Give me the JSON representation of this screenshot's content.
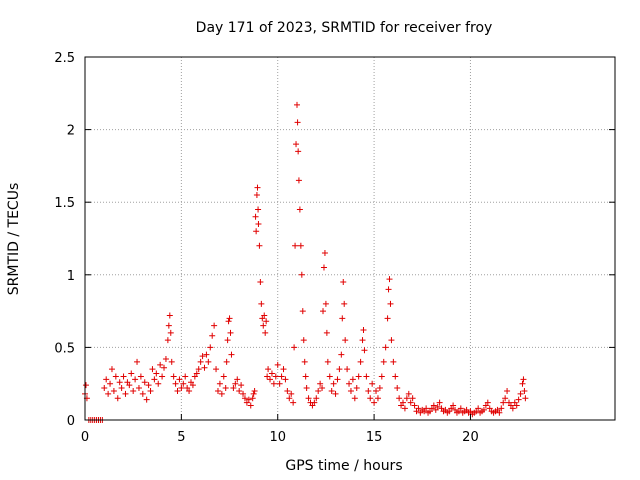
{
  "chart_data": {
    "type": "scatter",
    "title": "Day 171 of 2023, SRMTID for receiver froy",
    "xlabel": "GPS time / hours",
    "ylabel": "SRMTID / TECUs",
    "xlim": [
      0,
      27.5
    ],
    "ylim": [
      0,
      2.5
    ],
    "x_ticks": [
      0,
      5,
      10,
      15,
      20
    ],
    "x_tick_labels": [
      "0",
      "5",
      "10",
      "15",
      "20"
    ],
    "y_ticks": [
      0,
      0.5,
      1,
      1.5,
      2,
      2.5
    ],
    "y_tick_labels": [
      "0",
      "0.5",
      "1",
      "1.5",
      "2",
      "2.5"
    ],
    "grid": true,
    "marker": "+",
    "series": [
      {
        "name": "SRMTID",
        "color": "#e00000",
        "points": [
          [
            0.0,
            0.18
          ],
          [
            0.05,
            0.24
          ],
          [
            0.1,
            0.15
          ],
          [
            0.2,
            0.0
          ],
          [
            0.3,
            0.0
          ],
          [
            0.4,
            0.0
          ],
          [
            0.5,
            0.0
          ],
          [
            0.6,
            0.0
          ],
          [
            0.7,
            0.0
          ],
          [
            0.8,
            0.0
          ],
          [
            0.9,
            0.0
          ],
          [
            1.0,
            0.22
          ],
          [
            1.1,
            0.28
          ],
          [
            1.2,
            0.18
          ],
          [
            1.3,
            0.25
          ],
          [
            1.4,
            0.35
          ],
          [
            1.5,
            0.2
          ],
          [
            1.6,
            0.3
          ],
          [
            1.7,
            0.15
          ],
          [
            1.8,
            0.26
          ],
          [
            1.9,
            0.22
          ],
          [
            2.0,
            0.3
          ],
          [
            2.1,
            0.18
          ],
          [
            2.2,
            0.26
          ],
          [
            2.3,
            0.24
          ],
          [
            2.4,
            0.32
          ],
          [
            2.5,
            0.2
          ],
          [
            2.6,
            0.28
          ],
          [
            2.7,
            0.4
          ],
          [
            2.8,
            0.22
          ],
          [
            2.9,
            0.3
          ],
          [
            3.0,
            0.18
          ],
          [
            3.1,
            0.26
          ],
          [
            3.2,
            0.14
          ],
          [
            3.3,
            0.24
          ],
          [
            3.4,
            0.2
          ],
          [
            3.5,
            0.35
          ],
          [
            3.6,
            0.28
          ],
          [
            3.7,
            0.32
          ],
          [
            3.8,
            0.25
          ],
          [
            3.9,
            0.38
          ],
          [
            4.0,
            0.3
          ],
          [
            4.1,
            0.36
          ],
          [
            4.2,
            0.42
          ],
          [
            4.3,
            0.55
          ],
          [
            4.35,
            0.65
          ],
          [
            4.4,
            0.72
          ],
          [
            4.45,
            0.6
          ],
          [
            4.5,
            0.4
          ],
          [
            4.6,
            0.3
          ],
          [
            4.7,
            0.25
          ],
          [
            4.8,
            0.2
          ],
          [
            4.9,
            0.28
          ],
          [
            5.0,
            0.22
          ],
          [
            5.1,
            0.25
          ],
          [
            5.2,
            0.3
          ],
          [
            5.3,
            0.22
          ],
          [
            5.4,
            0.2
          ],
          [
            5.5,
            0.26
          ],
          [
            5.6,
            0.24
          ],
          [
            5.7,
            0.3
          ],
          [
            5.8,
            0.32
          ],
          [
            5.9,
            0.35
          ],
          [
            6.0,
            0.4
          ],
          [
            6.1,
            0.44
          ],
          [
            6.2,
            0.36
          ],
          [
            6.3,
            0.45
          ],
          [
            6.4,
            0.4
          ],
          [
            6.5,
            0.5
          ],
          [
            6.6,
            0.58
          ],
          [
            6.7,
            0.65
          ],
          [
            6.8,
            0.35
          ],
          [
            6.9,
            0.2
          ],
          [
            7.0,
            0.25
          ],
          [
            7.1,
            0.18
          ],
          [
            7.2,
            0.3
          ],
          [
            7.3,
            0.22
          ],
          [
            7.35,
            0.4
          ],
          [
            7.4,
            0.55
          ],
          [
            7.45,
            0.68
          ],
          [
            7.5,
            0.7
          ],
          [
            7.55,
            0.6
          ],
          [
            7.6,
            0.45
          ],
          [
            7.7,
            0.22
          ],
          [
            7.8,
            0.25
          ],
          [
            7.9,
            0.28
          ],
          [
            8.0,
            0.2
          ],
          [
            8.1,
            0.24
          ],
          [
            8.2,
            0.18
          ],
          [
            8.3,
            0.15
          ],
          [
            8.4,
            0.12
          ],
          [
            8.5,
            0.14
          ],
          [
            8.6,
            0.1
          ],
          [
            8.7,
            0.15
          ],
          [
            8.75,
            0.18
          ],
          [
            8.8,
            0.2
          ],
          [
            8.85,
            1.4
          ],
          [
            8.88,
            1.3
          ],
          [
            8.92,
            1.55
          ],
          [
            8.95,
            1.6
          ],
          [
            8.98,
            1.45
          ],
          [
            9.0,
            1.35
          ],
          [
            9.05,
            1.2
          ],
          [
            9.1,
            0.95
          ],
          [
            9.15,
            0.8
          ],
          [
            9.2,
            0.7
          ],
          [
            9.25,
            0.65
          ],
          [
            9.3,
            0.72
          ],
          [
            9.35,
            0.6
          ],
          [
            9.4,
            0.68
          ],
          [
            9.45,
            0.3
          ],
          [
            9.5,
            0.35
          ],
          [
            9.6,
            0.28
          ],
          [
            9.7,
            0.32
          ],
          [
            9.8,
            0.25
          ],
          [
            9.9,
            0.3
          ],
          [
            10.0,
            0.38
          ],
          [
            10.1,
            0.25
          ],
          [
            10.2,
            0.3
          ],
          [
            10.3,
            0.35
          ],
          [
            10.4,
            0.28
          ],
          [
            10.5,
            0.2
          ],
          [
            10.6,
            0.15
          ],
          [
            10.7,
            0.18
          ],
          [
            10.8,
            0.12
          ],
          [
            10.85,
            0.5
          ],
          [
            10.9,
            1.2
          ],
          [
            10.95,
            1.9
          ],
          [
            11.0,
            2.17
          ],
          [
            11.03,
            2.05
          ],
          [
            11.06,
            1.85
          ],
          [
            11.1,
            1.65
          ],
          [
            11.15,
            1.45
          ],
          [
            11.2,
            1.2
          ],
          [
            11.25,
            1.0
          ],
          [
            11.3,
            0.75
          ],
          [
            11.35,
            0.55
          ],
          [
            11.4,
            0.4
          ],
          [
            11.45,
            0.3
          ],
          [
            11.5,
            0.22
          ],
          [
            11.6,
            0.15
          ],
          [
            11.7,
            0.12
          ],
          [
            11.8,
            0.1
          ],
          [
            11.9,
            0.12
          ],
          [
            12.0,
            0.15
          ],
          [
            12.1,
            0.2
          ],
          [
            12.2,
            0.25
          ],
          [
            12.3,
            0.22
          ],
          [
            12.35,
            0.75
          ],
          [
            12.4,
            1.05
          ],
          [
            12.45,
            1.15
          ],
          [
            12.5,
            0.8
          ],
          [
            12.55,
            0.6
          ],
          [
            12.6,
            0.4
          ],
          [
            12.7,
            0.3
          ],
          [
            12.8,
            0.2
          ],
          [
            12.9,
            0.25
          ],
          [
            13.0,
            0.18
          ],
          [
            13.1,
            0.28
          ],
          [
            13.2,
            0.35
          ],
          [
            13.3,
            0.45
          ],
          [
            13.35,
            0.7
          ],
          [
            13.4,
            0.95
          ],
          [
            13.45,
            0.8
          ],
          [
            13.5,
            0.55
          ],
          [
            13.6,
            0.35
          ],
          [
            13.7,
            0.25
          ],
          [
            13.8,
            0.2
          ],
          [
            13.9,
            0.28
          ],
          [
            14.0,
            0.15
          ],
          [
            14.1,
            0.22
          ],
          [
            14.2,
            0.3
          ],
          [
            14.3,
            0.4
          ],
          [
            14.4,
            0.55
          ],
          [
            14.45,
            0.62
          ],
          [
            14.5,
            0.48
          ],
          [
            14.6,
            0.3
          ],
          [
            14.7,
            0.2
          ],
          [
            14.8,
            0.15
          ],
          [
            14.9,
            0.25
          ],
          [
            15.0,
            0.12
          ],
          [
            15.1,
            0.2
          ],
          [
            15.2,
            0.15
          ],
          [
            15.3,
            0.22
          ],
          [
            15.4,
            0.3
          ],
          [
            15.5,
            0.4
          ],
          [
            15.6,
            0.5
          ],
          [
            15.7,
            0.7
          ],
          [
            15.75,
            0.9
          ],
          [
            15.8,
            0.97
          ],
          [
            15.85,
            0.8
          ],
          [
            15.9,
            0.55
          ],
          [
            16.0,
            0.4
          ],
          [
            16.1,
            0.3
          ],
          [
            16.2,
            0.22
          ],
          [
            16.3,
            0.15
          ],
          [
            16.4,
            0.1
          ],
          [
            16.5,
            0.12
          ],
          [
            16.6,
            0.08
          ],
          [
            16.7,
            0.15
          ],
          [
            16.8,
            0.18
          ],
          [
            16.9,
            0.12
          ],
          [
            17.0,
            0.15
          ],
          [
            17.1,
            0.1
          ],
          [
            17.2,
            0.06
          ],
          [
            17.3,
            0.08
          ],
          [
            17.4,
            0.05
          ],
          [
            17.5,
            0.07
          ],
          [
            17.6,
            0.06
          ],
          [
            17.7,
            0.08
          ],
          [
            17.8,
            0.05
          ],
          [
            17.9,
            0.06
          ],
          [
            18.0,
            0.08
          ],
          [
            18.1,
            0.1
          ],
          [
            18.2,
            0.07
          ],
          [
            18.3,
            0.09
          ],
          [
            18.4,
            0.12
          ],
          [
            18.5,
            0.08
          ],
          [
            18.6,
            0.06
          ],
          [
            18.7,
            0.07
          ],
          [
            18.8,
            0.05
          ],
          [
            18.9,
            0.06
          ],
          [
            19.0,
            0.08
          ],
          [
            19.1,
            0.1
          ],
          [
            19.2,
            0.07
          ],
          [
            19.3,
            0.05
          ],
          [
            19.4,
            0.06
          ],
          [
            19.5,
            0.08
          ],
          [
            19.6,
            0.05
          ],
          [
            19.7,
            0.06
          ],
          [
            19.8,
            0.07
          ],
          [
            19.9,
            0.05
          ],
          [
            20.0,
            0.06
          ],
          [
            20.1,
            0.04
          ],
          [
            20.2,
            0.05
          ],
          [
            20.3,
            0.06
          ],
          [
            20.4,
            0.08
          ],
          [
            20.5,
            0.05
          ],
          [
            20.6,
            0.06
          ],
          [
            20.7,
            0.07
          ],
          [
            20.8,
            0.1
          ],
          [
            20.9,
            0.12
          ],
          [
            21.0,
            0.08
          ],
          [
            21.1,
            0.06
          ],
          [
            21.2,
            0.05
          ],
          [
            21.3,
            0.06
          ],
          [
            21.4,
            0.07
          ],
          [
            21.5,
            0.05
          ],
          [
            21.6,
            0.08
          ],
          [
            21.7,
            0.12
          ],
          [
            21.8,
            0.15
          ],
          [
            21.9,
            0.2
          ],
          [
            22.0,
            0.12
          ],
          [
            22.1,
            0.1
          ],
          [
            22.2,
            0.08
          ],
          [
            22.3,
            0.12
          ],
          [
            22.4,
            0.1
          ],
          [
            22.5,
            0.14
          ],
          [
            22.6,
            0.18
          ],
          [
            22.7,
            0.25
          ],
          [
            22.75,
            0.28
          ],
          [
            22.8,
            0.2
          ],
          [
            22.85,
            0.15
          ]
        ]
      }
    ]
  }
}
